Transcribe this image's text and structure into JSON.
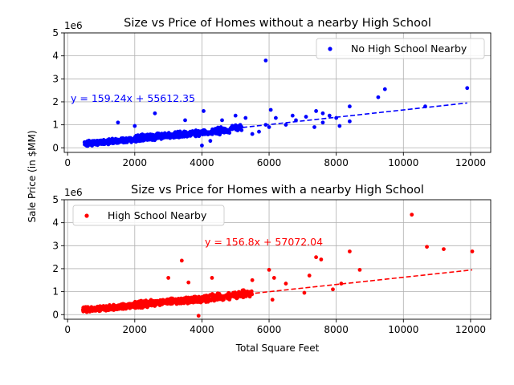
{
  "figure": {
    "shared_ylabel": "Sale Price (in $MM)"
  },
  "chart_data": [
    {
      "type": "scatter",
      "title": "Size vs Price of Homes without a nearby High School",
      "xlabel": "",
      "ylabel": "Sale Price (in $MM)",
      "offset_label": "1e6",
      "xlim": [
        -100,
        12600
      ],
      "ylim": [
        -0.2,
        5.0
      ],
      "xticks": [
        0,
        2000,
        4000,
        6000,
        8000,
        10000,
        12000
      ],
      "yticks": [
        0,
        1,
        2,
        3,
        4,
        5
      ],
      "grid": true,
      "legend_position": "upper-right",
      "color": "#0000ff",
      "series": [
        {
          "name": "No High School Nearby",
          "clusters": [
            {
              "x_range": [
                500,
                2600
              ],
              "y_center": 0.28,
              "y_spread": 0.12,
              "count": 420
            },
            {
              "x_range": [
                2000,
                4100
              ],
              "y_center": 0.52,
              "y_spread": 0.15,
              "count": 380
            },
            {
              "x_range": [
                4100,
                5200
              ],
              "y_center": 0.75,
              "y_spread": 0.18,
              "count": 90
            }
          ],
          "points": [
            [
              1500,
              1.1
            ],
            [
              2000,
              0.95
            ],
            [
              2600,
              1.5
            ],
            [
              3500,
              1.2
            ],
            [
              4050,
              1.6
            ],
            [
              4000,
              0.1
            ],
            [
              4250,
              0.3
            ],
            [
              4600,
              1.2
            ],
            [
              5000,
              1.4
            ],
            [
              5300,
              1.3
            ],
            [
              5500,
              0.6
            ],
            [
              5700,
              0.7
            ],
            [
              5900,
              1.0
            ],
            [
              5900,
              3.8
            ],
            [
              6000,
              0.9
            ],
            [
              6050,
              1.65
            ],
            [
              6200,
              1.3
            ],
            [
              6500,
              1.0
            ],
            [
              6700,
              1.4
            ],
            [
              6800,
              1.2
            ],
            [
              7100,
              1.35
            ],
            [
              7350,
              0.9
            ],
            [
              7400,
              1.6
            ],
            [
              7600,
              1.5
            ],
            [
              7600,
              1.1
            ],
            [
              7800,
              1.4
            ],
            [
              8000,
              1.3
            ],
            [
              8100,
              0.95
            ],
            [
              8400,
              1.15
            ],
            [
              8400,
              1.8
            ],
            [
              9250,
              2.2
            ],
            [
              9450,
              2.55
            ],
            [
              10650,
              1.8
            ],
            [
              11900,
              2.6
            ]
          ]
        }
      ],
      "fit": {
        "slope": 159.24,
        "intercept": 55612.35,
        "x_range": [
          500,
          11900
        ],
        "label": "y = 159.24x + 55612.35"
      }
    },
    {
      "type": "scatter",
      "title": "Size vs Price for Homes with a nearby High School",
      "xlabel": "Total Square Feet",
      "ylabel": "Sale Price (in $MM)",
      "offset_label": "1e6",
      "xlim": [
        -100,
        12600
      ],
      "ylim": [
        -0.2,
        5.0
      ],
      "xticks": [
        0,
        2000,
        4000,
        6000,
        8000,
        10000,
        12000
      ],
      "yticks": [
        0,
        1,
        2,
        3,
        4,
        5
      ],
      "grid": true,
      "legend_position": "upper-left",
      "color": "#ff0000",
      "series": [
        {
          "name": "High School Nearby",
          "clusters": [
            {
              "x_range": [
                450,
                2400
              ],
              "y_center": 0.3,
              "y_spread": 0.13,
              "count": 420
            },
            {
              "x_range": [
                2000,
                4200
              ],
              "y_center": 0.55,
              "y_spread": 0.15,
              "count": 380
            },
            {
              "x_range": [
                4200,
                5500
              ],
              "y_center": 0.8,
              "y_spread": 0.2,
              "count": 110
            }
          ],
          "points": [
            [
              3000,
              1.6
            ],
            [
              3400,
              2.35
            ],
            [
              3600,
              1.4
            ],
            [
              3900,
              -0.05
            ],
            [
              4300,
              1.6
            ],
            [
              5500,
              1.5
            ],
            [
              6000,
              1.95
            ],
            [
              6100,
              0.65
            ],
            [
              6150,
              1.6
            ],
            [
              6500,
              1.35
            ],
            [
              7050,
              0.95
            ],
            [
              7200,
              1.7
            ],
            [
              7400,
              2.5
            ],
            [
              7550,
              2.4
            ],
            [
              7900,
              1.1
            ],
            [
              8150,
              1.35
            ],
            [
              8400,
              2.75
            ],
            [
              8700,
              1.95
            ],
            [
              10250,
              4.35
            ],
            [
              10700,
              2.95
            ],
            [
              11200,
              2.85
            ],
            [
              12050,
              2.75
            ]
          ]
        }
      ],
      "fit": {
        "slope": 156.8,
        "intercept": 57072.04,
        "x_range": [
          450,
          12050
        ],
        "label": "y = 156.8x + 57072.04"
      }
    }
  ]
}
